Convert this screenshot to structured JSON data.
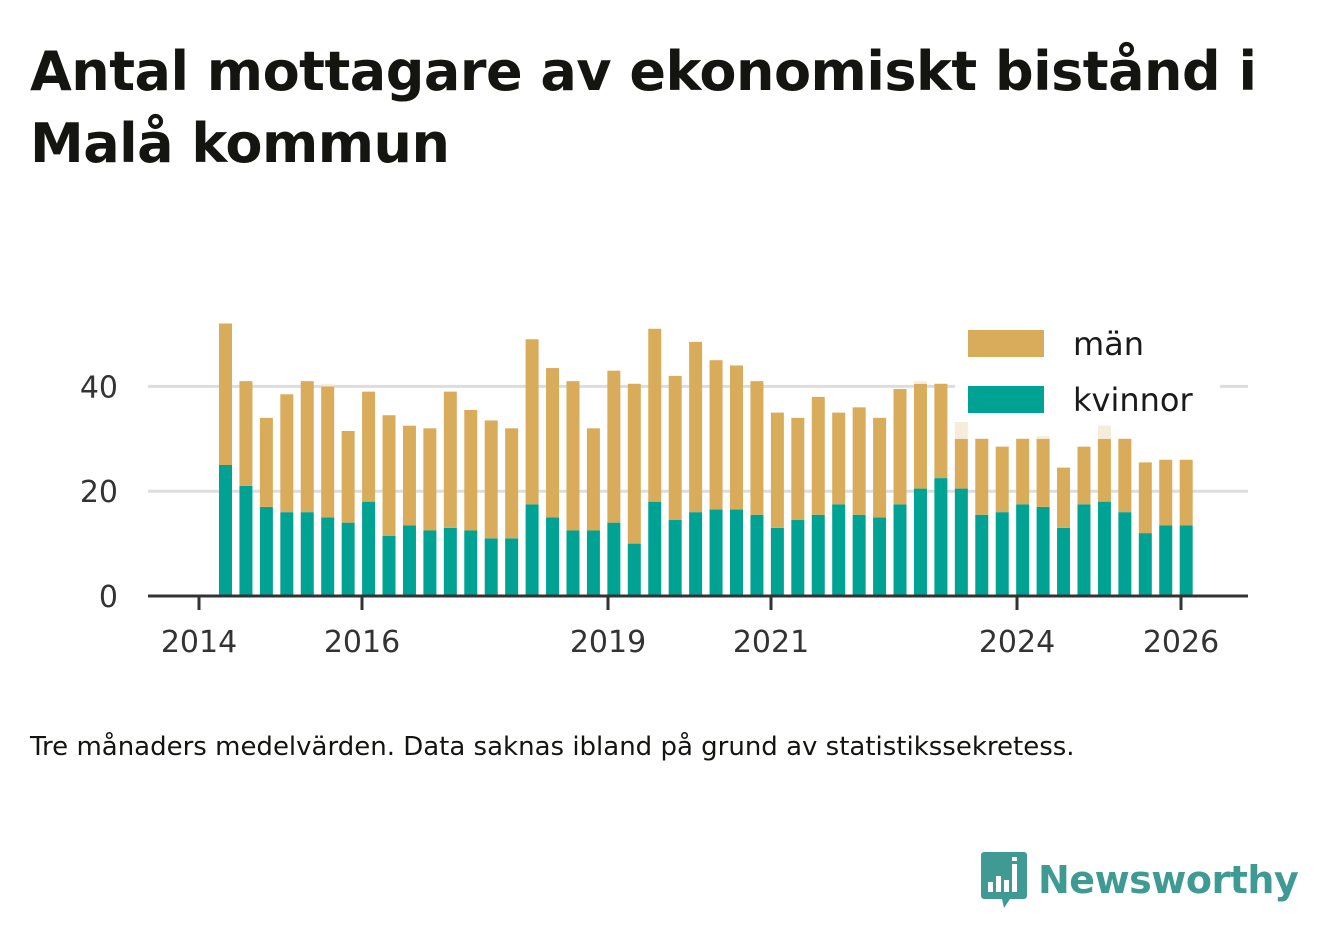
{
  "title": "Antal mottagare av ekonomiskt bistånd i Malå kommun",
  "caption": "Tre månaders medelvärden. Data saknas ibland på grund av statistikssekretess.",
  "brand": "Newsworthy",
  "colors": {
    "men": "#d9ac5b",
    "women": "#00a294",
    "missing": "#f5ecdc",
    "grid": "#dddddd",
    "axis": "#333333",
    "brand": "#3f9a93"
  },
  "chart_data": {
    "type": "bar",
    "stacked": true,
    "x_ticks": [
      "2014",
      "2016",
      "2019",
      "2021",
      "2024",
      "2026"
    ],
    "y_ticks": [
      "0",
      "20",
      "40"
    ],
    "ylim": [
      0,
      55
    ],
    "legend_position": "top-right",
    "series": [
      {
        "name": "kvinnor",
        "values": [
          25,
          21,
          17,
          16,
          16,
          15,
          14,
          18,
          11.5,
          13.5,
          12.5,
          13,
          12.5,
          11,
          11,
          17.5,
          15,
          12.5,
          12.5,
          14,
          10,
          18,
          14.5,
          16,
          16.5,
          16.5,
          15.5,
          13,
          14.5,
          15.5,
          17.5,
          15.5,
          15,
          17.5,
          20.5,
          22.5,
          20.5,
          15.5,
          16,
          17.5,
          17,
          13,
          17.5,
          18,
          16,
          12,
          13.5,
          13.5
        ]
      },
      {
        "name": "män",
        "values": [
          27,
          20,
          17,
          22.5,
          25,
          25,
          17.5,
          21,
          23,
          19,
          19.5,
          26,
          23,
          22.5,
          21,
          31.5,
          28.5,
          28.5,
          19.5,
          29,
          30.5,
          33,
          27.5,
          32.5,
          28.5,
          27.5,
          25.5,
          22,
          19.5,
          22.5,
          17.5,
          20.5,
          19,
          22,
          20,
          18,
          9.5,
          14.5,
          12.5,
          12.5,
          13,
          11.5,
          11,
          12,
          14,
          13.5,
          12.5,
          12.5
        ]
      }
    ],
    "missing_values": [
      0,
      0,
      0,
      0,
      0,
      0.5,
      0,
      0,
      0,
      0,
      0,
      0,
      0,
      0,
      0,
      0,
      0,
      0,
      0,
      0,
      0,
      0,
      0,
      0,
      0,
      0,
      0,
      0,
      0,
      0,
      0,
      0,
      0,
      0,
      0.5,
      0,
      5.5,
      0,
      0,
      0,
      0.5,
      0,
      0,
      2.5,
      0,
      0,
      0,
      0
    ]
  }
}
